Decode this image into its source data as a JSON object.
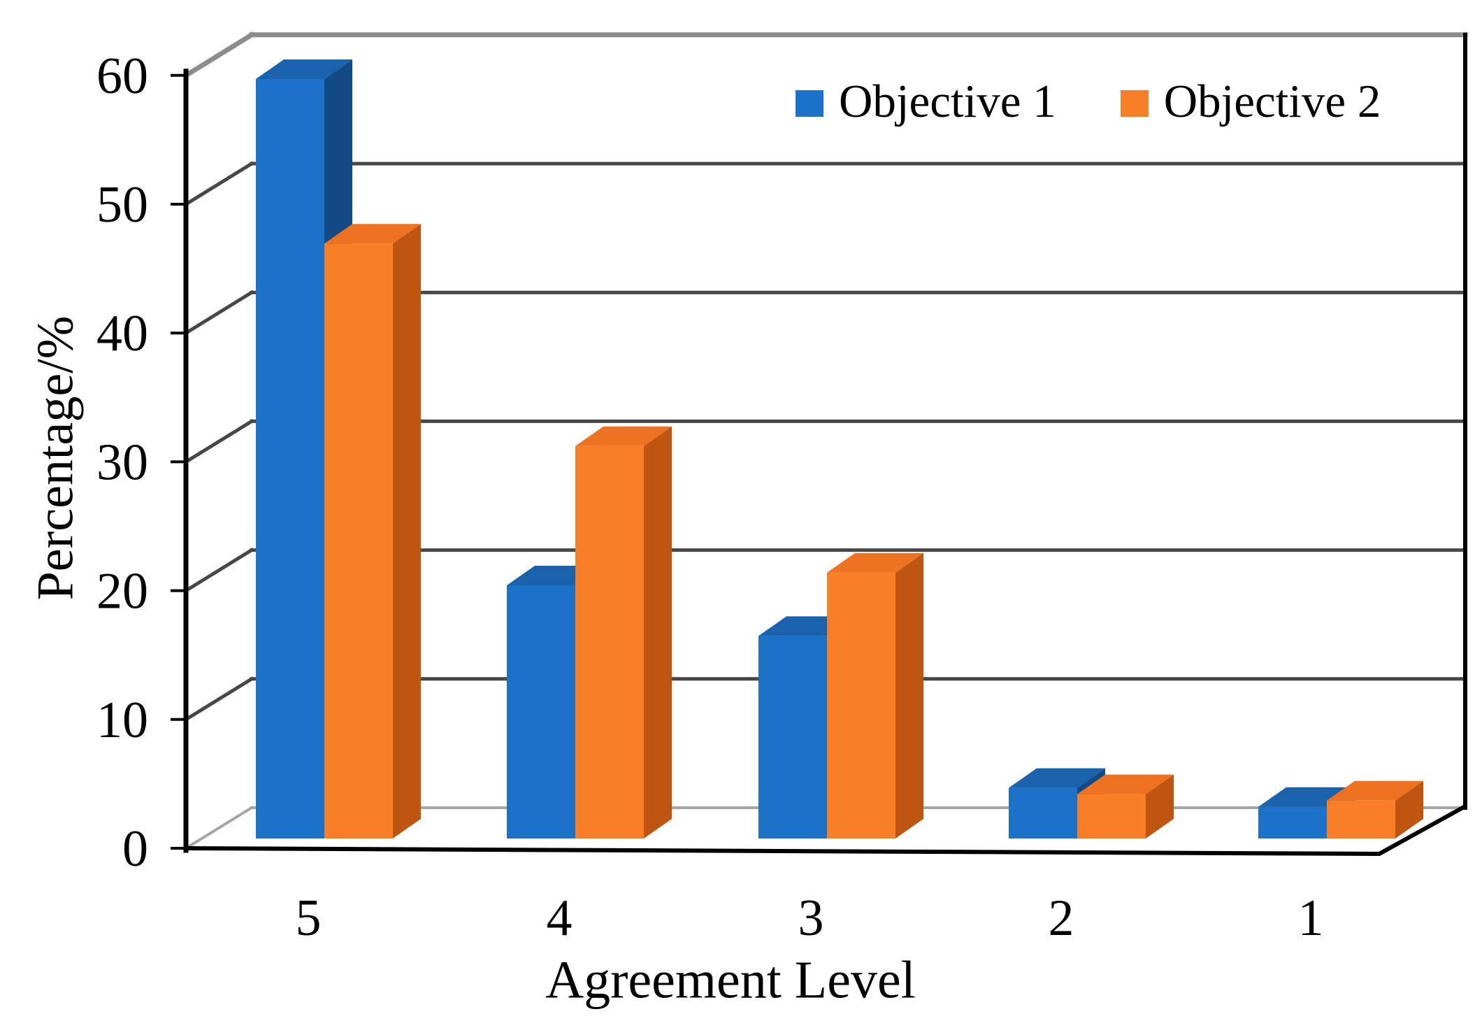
{
  "chart_data": {
    "type": "bar",
    "projection": "3d",
    "categories": [
      "5",
      "4",
      "3",
      "2",
      "1"
    ],
    "series": [
      {
        "name": "Objective 1",
        "values": [
          60,
          20,
          16,
          4,
          2.5
        ]
      },
      {
        "name": "Objective 2",
        "values": [
          47,
          31,
          21,
          3.5,
          3
        ]
      }
    ],
    "xlabel": "Agreement Level",
    "ylabel": "Percentage/%",
    "ylim": [
      0,
      60
    ],
    "yticks": [
      0,
      10,
      20,
      30,
      40,
      50,
      60
    ],
    "grid": true,
    "legend_position": "top-right"
  },
  "colors": {
    "series1_front": "#1B72C8",
    "series1_top": "#1A62AC",
    "series1_side": "#124A85",
    "series2_front": "#F87E28",
    "series2_top": "#ED7221",
    "series2_side": "#BE5612",
    "gridline": "#474747",
    "gridline_top": "#8C8C8C",
    "gridline_floor": "#A6A6A6",
    "axis": "#000000"
  }
}
